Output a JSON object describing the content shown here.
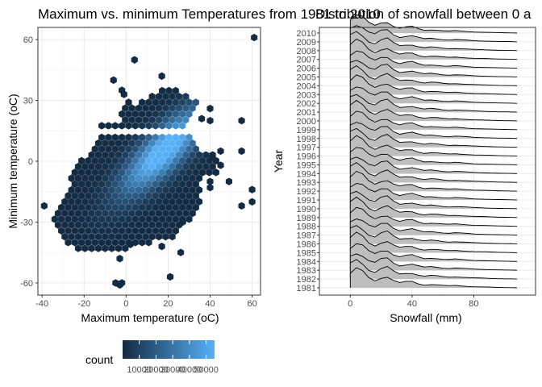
{
  "chart_data": [
    {
      "type": "heatmap",
      "subtype": "hexbin",
      "title": "Maximum vs. minimum Temperatures from 1981 to 2010",
      "xlabel": "Maximum temperature (oC)",
      "ylabel": "Minimum temperature (oC)",
      "xlim": [
        -42,
        64
      ],
      "ylim": [
        -66,
        66
      ],
      "xticks": [
        "-40",
        "-20",
        "0",
        "20",
        "40",
        "60"
      ],
      "yticks": [
        "-60",
        "-30",
        "0",
        "30",
        "60"
      ],
      "xtick_values": [
        -40,
        -20,
        0,
        20,
        40,
        60
      ],
      "ytick_values": [
        -60,
        -30,
        0,
        30,
        60
      ],
      "legend": {
        "title": "count",
        "labels": [
          "10000",
          "20000",
          "30000",
          "40000",
          "50000"
        ],
        "values": [
          10000,
          20000,
          30000,
          40000,
          50000
        ],
        "range": [
          0,
          55000
        ],
        "color_low": "#132B43",
        "color_high": "#56B1F7"
      },
      "grid": true
    },
    {
      "type": "area",
      "subtype": "ridgeline",
      "title": "Distribution of snowfall between 0 a",
      "xlabel": "Snowfall (mm)",
      "ylabel": "Year",
      "xlim": [
        -20,
        120
      ],
      "xticks": [
        "0",
        "40",
        "80"
      ],
      "xtick_values": [
        0,
        40,
        80
      ],
      "years": [
        "1981",
        "1982",
        "1983",
        "1984",
        "1985",
        "1986",
        "1987",
        "1988",
        "1989",
        "1990",
        "1991",
        "1992",
        "1993",
        "1994",
        "1995",
        "1996",
        "1997",
        "1998",
        "1999",
        "2000",
        "2001",
        "2002",
        "2003",
        "2004",
        "2005",
        "2006",
        "2007",
        "2008",
        "2009",
        "2010"
      ],
      "density_x": [
        0,
        4,
        8,
        12,
        16,
        20,
        24,
        28,
        32,
        36,
        40,
        44,
        48,
        52,
        56,
        60,
        64,
        68,
        72,
        76,
        80,
        84,
        88,
        92,
        96,
        100,
        104,
        108
      ],
      "density_y": [
        0.75,
        0.95,
        0.8,
        0.5,
        0.38,
        0.55,
        0.6,
        0.38,
        0.25,
        0.3,
        0.32,
        0.22,
        0.15,
        0.18,
        0.16,
        0.12,
        0.1,
        0.12,
        0.1,
        0.08,
        0.06,
        0.05,
        0.04,
        0.03,
        0.02,
        0.015,
        0.01,
        0
      ],
      "fill": "#bebebe",
      "grid": true
    }
  ]
}
